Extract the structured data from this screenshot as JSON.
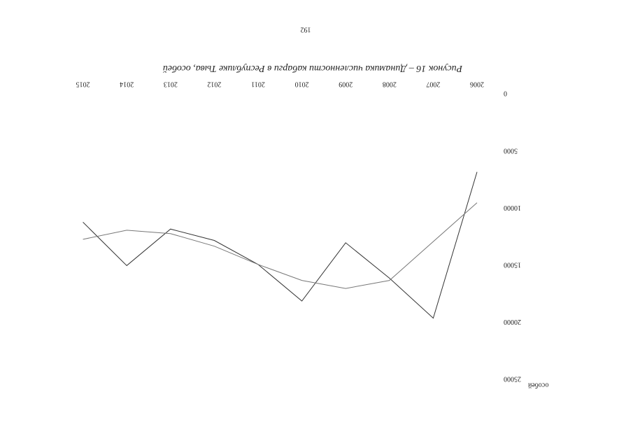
{
  "chart_data": {
    "type": "line",
    "caption": "Рисунок 16 – Динамика численности кабарги в Республике Тыва, особей",
    "page_number": "192",
    "ylabel": "особей",
    "categories": [
      "2006",
      "2007",
      "2008",
      "2009",
      "2010",
      "2011",
      "2012",
      "2013",
      "2014",
      "2015"
    ],
    "series": [
      {
        "color": "#333333",
        "values": [
          6900,
          19700,
          16200,
          13100,
          18200,
          15000,
          12900,
          11900,
          15100,
          11300
        ]
      },
      {
        "color": "#777777",
        "values": [
          9600,
          13000,
          16400,
          17100,
          16400,
          15000,
          13400,
          12300,
          12000,
          12800
        ]
      }
    ],
    "ylim": [
      0,
      25000
    ],
    "yticks": [
      0,
      5000,
      10000,
      15000,
      20000,
      25000
    ],
    "grid": false
  }
}
